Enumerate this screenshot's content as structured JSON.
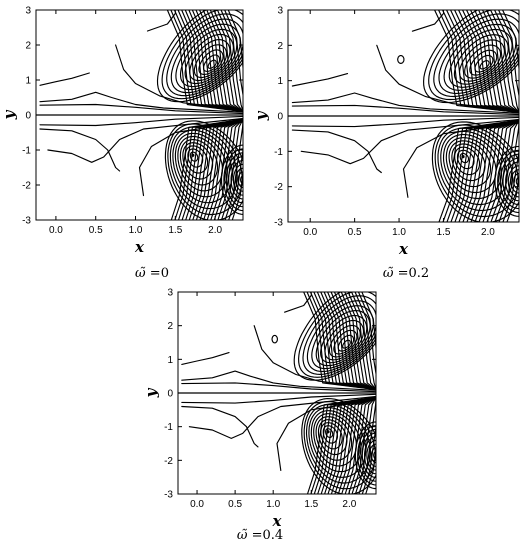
{
  "chart_data": [
    {
      "type": "contour",
      "caption_symbol": "ω̃",
      "caption_eq": "=",
      "caption_value": "0",
      "xlabel": "x",
      "ylabel": "y",
      "xlim": [
        -0.25,
        2.35
      ],
      "ylim": [
        -3,
        3
      ],
      "xticks": [
        "0.0",
        "0.5",
        "1.0",
        "1.5",
        "2.0"
      ],
      "yticks": [
        "-3",
        "-2",
        "-1",
        "0",
        "1",
        "2",
        "3"
      ],
      "centers": [
        {
          "x": 1.72,
          "y": -1.15,
          "label": "lower vortex"
        },
        {
          "x": 1.97,
          "y": 1.42,
          "label": "upper vortex"
        }
      ],
      "small_loop": false
    },
    {
      "type": "contour",
      "caption_symbol": "ω̃",
      "caption_eq": "=",
      "caption_value": "0.2",
      "xlabel": "x",
      "ylabel": "y",
      "xlim": [
        -0.25,
        2.35
      ],
      "ylim": [
        -3,
        3
      ],
      "xticks": [
        "0.0",
        "0.5",
        "1.0",
        "1.5",
        "2.0"
      ],
      "yticks": [
        "-3",
        "-2",
        "-1",
        "0",
        "1",
        "2",
        "3"
      ],
      "centers": [
        {
          "x": 1.72,
          "y": -1.15,
          "label": "lower vortex"
        },
        {
          "x": 1.97,
          "y": 1.42,
          "label": "upper vortex"
        }
      ],
      "small_loop": true
    },
    {
      "type": "contour",
      "caption_symbol": "ω̃",
      "caption_eq": "=",
      "caption_value": "0.4",
      "xlabel": "x",
      "ylabel": "y",
      "xlim": [
        -0.25,
        2.35
      ],
      "ylim": [
        -3,
        3
      ],
      "xticks": [
        "0.0",
        "0.5",
        "1.0",
        "1.5",
        "2.0"
      ],
      "yticks": [
        "-3",
        "-2",
        "-1",
        "0",
        "1",
        "2",
        "3"
      ],
      "centers": [
        {
          "x": 1.72,
          "y": -1.15,
          "label": "lower vortex"
        },
        {
          "x": 1.97,
          "y": 1.42,
          "label": "upper vortex"
        }
      ],
      "small_loop": true
    }
  ]
}
